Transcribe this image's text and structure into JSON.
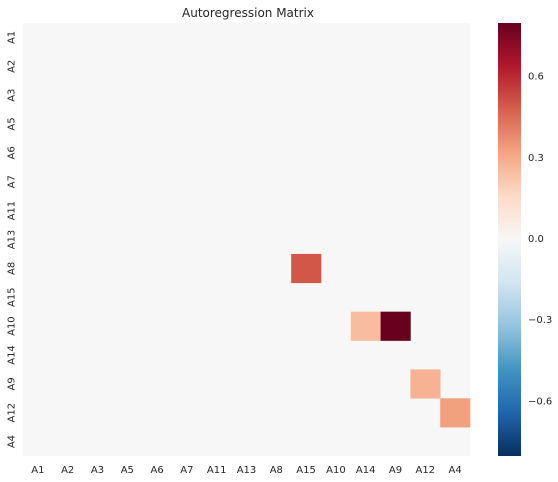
{
  "chart_data": {
    "type": "heatmap",
    "title": "Autoregression Matrix",
    "x_labels": [
      "A1",
      "A2",
      "A3",
      "A5",
      "A6",
      "A7",
      "A11",
      "A13",
      "A8",
      "A15",
      "A10",
      "A14",
      "A9",
      "A12",
      "A4"
    ],
    "y_labels": [
      "A1",
      "A2",
      "A3",
      "A5",
      "A6",
      "A7",
      "A11",
      "A13",
      "A8",
      "A15",
      "A10",
      "A14",
      "A9",
      "A12",
      "A4"
    ],
    "cells": [
      {
        "row": "A8",
        "col": "A15",
        "value": 0.5
      },
      {
        "row": "A10",
        "col": "A14",
        "value": 0.25
      },
      {
        "row": "A10",
        "col": "A9",
        "value": 0.8
      },
      {
        "row": "A9",
        "col": "A12",
        "value": 0.28
      },
      {
        "row": "A12",
        "col": "A4",
        "value": 0.33
      }
    ],
    "default_value": 0.0,
    "colormap": "RdBu_r",
    "vmin": -0.8,
    "vmax": 0.8,
    "colorbar_ticks": [
      "0.6",
      "0.3",
      "0.0",
      "−0.3",
      "−0.6"
    ],
    "colorbar_tick_values": [
      0.6,
      0.3,
      0.0,
      -0.3,
      -0.6
    ],
    "background_color": "#f7f7f7"
  }
}
